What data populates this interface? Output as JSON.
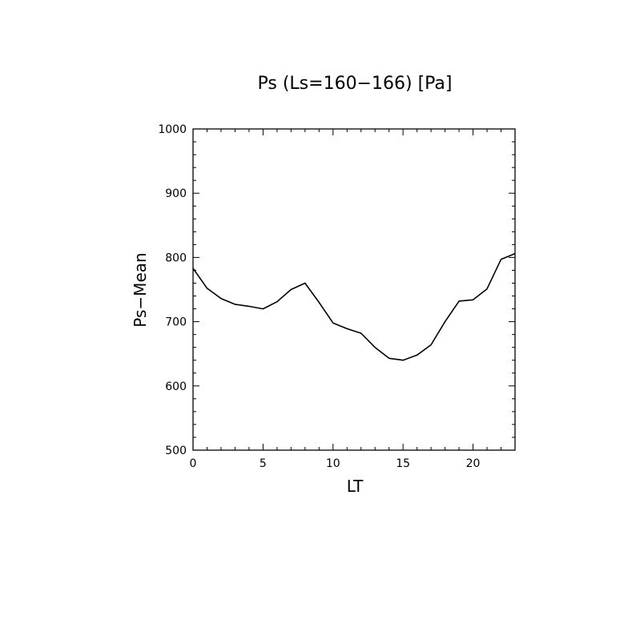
{
  "chart_data": {
    "type": "line",
    "title": "Ps (Ls=160−166) [Pa]",
    "xlabel": "LT",
    "ylabel": "Ps−Mean",
    "xlim": [
      0,
      23
    ],
    "ylim": [
      500,
      1000
    ],
    "x_major_ticks": [
      0,
      5,
      10,
      15,
      20
    ],
    "x_tick_labels": [
      "0",
      "5",
      "10",
      "15",
      "20"
    ],
    "x_minor_step": 1,
    "y_major_ticks": [
      500,
      600,
      700,
      800,
      900,
      1000
    ],
    "y_tick_labels": [
      "500",
      "600",
      "700",
      "800",
      "900",
      "1000"
    ],
    "y_minor_step": 20,
    "grid": false,
    "series": [
      {
        "x": [
          0,
          1,
          2,
          3,
          4,
          5,
          6,
          7,
          8,
          9,
          10,
          11,
          12,
          13,
          14,
          15,
          16,
          17,
          18,
          19,
          20,
          21,
          22,
          23
        ],
        "values": [
          783,
          752,
          736,
          727,
          724,
          720,
          731,
          750,
          760,
          730,
          698,
          689,
          682,
          660,
          643,
          640,
          648,
          664,
          700,
          732,
          734,
          751,
          797,
          806
        ]
      }
    ]
  }
}
